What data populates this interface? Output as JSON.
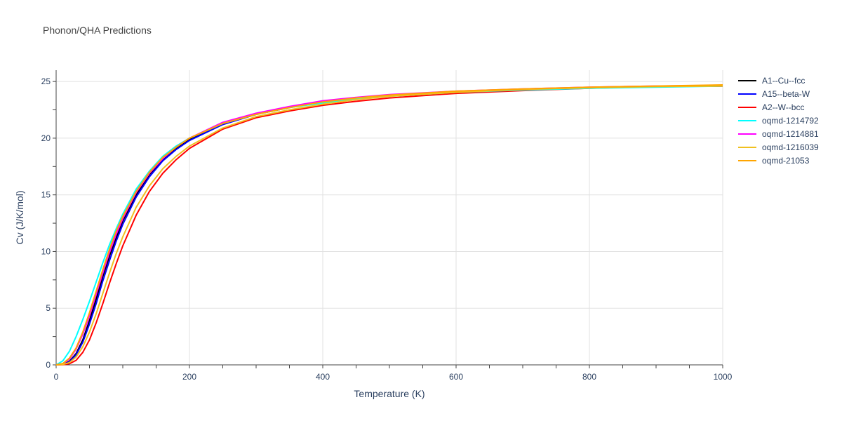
{
  "chart_data": {
    "type": "line",
    "title": "Phonon/QHA Predictions",
    "xlabel": "Temperature (K)",
    "ylabel": "Cv (J/K/mol)",
    "xlim": [
      0,
      1000
    ],
    "ylim": [
      0,
      26
    ],
    "x_ticks": [
      0,
      200,
      400,
      600,
      800,
      1000
    ],
    "y_ticks": [
      0,
      5,
      10,
      15,
      20,
      25
    ],
    "grid": true,
    "legend_position": "right",
    "series": [
      {
        "name": "A1--Cu--fcc",
        "color": "#000000",
        "points": [
          [
            0,
            0
          ],
          [
            10,
            0.05
          ],
          [
            20,
            0.3
          ],
          [
            30,
            1.0
          ],
          [
            40,
            2.2
          ],
          [
            50,
            3.9
          ],
          [
            60,
            5.8
          ],
          [
            70,
            7.8
          ],
          [
            80,
            9.6
          ],
          [
            90,
            11.2
          ],
          [
            100,
            12.7
          ],
          [
            120,
            15.0
          ],
          [
            140,
            16.8
          ],
          [
            160,
            18.1
          ],
          [
            180,
            19.1
          ],
          [
            200,
            19.9
          ],
          [
            250,
            21.3
          ],
          [
            300,
            22.1
          ],
          [
            350,
            22.7
          ],
          [
            400,
            23.2
          ],
          [
            450,
            23.55
          ],
          [
            500,
            23.8
          ],
          [
            600,
            24.1
          ],
          [
            700,
            24.3
          ],
          [
            800,
            24.45
          ],
          [
            900,
            24.55
          ],
          [
            1000,
            24.6
          ]
        ]
      },
      {
        "name": "A15--beta-W",
        "color": "#0000ff",
        "points": [
          [
            0,
            0
          ],
          [
            10,
            0.05
          ],
          [
            20,
            0.25
          ],
          [
            30,
            0.9
          ],
          [
            40,
            2.0
          ],
          [
            50,
            3.6
          ],
          [
            60,
            5.4
          ],
          [
            70,
            7.4
          ],
          [
            80,
            9.2
          ],
          [
            90,
            10.9
          ],
          [
            100,
            12.4
          ],
          [
            120,
            14.8
          ],
          [
            140,
            16.6
          ],
          [
            160,
            18.0
          ],
          [
            180,
            19.0
          ],
          [
            200,
            19.8
          ],
          [
            250,
            21.2
          ],
          [
            300,
            22.1
          ],
          [
            350,
            22.7
          ],
          [
            400,
            23.2
          ],
          [
            450,
            23.55
          ],
          [
            500,
            23.8
          ],
          [
            600,
            24.1
          ],
          [
            700,
            24.3
          ],
          [
            800,
            24.45
          ],
          [
            900,
            24.55
          ],
          [
            1000,
            24.6
          ]
        ]
      },
      {
        "name": "A2--W--bcc",
        "color": "#ff0000",
        "points": [
          [
            0,
            0
          ],
          [
            10,
            0.02
          ],
          [
            20,
            0.1
          ],
          [
            30,
            0.4
          ],
          [
            40,
            1.1
          ],
          [
            50,
            2.2
          ],
          [
            60,
            3.7
          ],
          [
            70,
            5.4
          ],
          [
            80,
            7.2
          ],
          [
            90,
            8.9
          ],
          [
            100,
            10.5
          ],
          [
            120,
            13.2
          ],
          [
            140,
            15.3
          ],
          [
            160,
            16.9
          ],
          [
            180,
            18.1
          ],
          [
            200,
            19.1
          ],
          [
            250,
            20.8
          ],
          [
            300,
            21.8
          ],
          [
            350,
            22.4
          ],
          [
            400,
            22.9
          ],
          [
            450,
            23.25
          ],
          [
            500,
            23.55
          ],
          [
            600,
            23.95
          ],
          [
            700,
            24.2
          ],
          [
            800,
            24.4
          ],
          [
            900,
            24.55
          ],
          [
            1000,
            24.6
          ]
        ]
      },
      {
        "name": "oqmd-1214792",
        "color": "#00ffff",
        "points": [
          [
            0,
            0
          ],
          [
            10,
            0.35
          ],
          [
            20,
            1.2
          ],
          [
            30,
            2.5
          ],
          [
            40,
            4.0
          ],
          [
            50,
            5.6
          ],
          [
            60,
            7.3
          ],
          [
            70,
            9.0
          ],
          [
            80,
            10.6
          ],
          [
            90,
            12.0
          ],
          [
            100,
            13.3
          ],
          [
            120,
            15.5
          ],
          [
            140,
            17.1
          ],
          [
            160,
            18.4
          ],
          [
            180,
            19.3
          ],
          [
            200,
            20.0
          ],
          [
            250,
            21.3
          ],
          [
            300,
            22.1
          ],
          [
            350,
            22.7
          ],
          [
            400,
            23.1
          ],
          [
            450,
            23.45
          ],
          [
            500,
            23.7
          ],
          [
            600,
            24.05
          ],
          [
            700,
            24.25
          ],
          [
            800,
            24.4
          ],
          [
            900,
            24.5
          ],
          [
            1000,
            24.6
          ]
        ]
      },
      {
        "name": "oqmd-1214881",
        "color": "#ff00ff",
        "points": [
          [
            0,
            0
          ],
          [
            10,
            0.1
          ],
          [
            20,
            0.5
          ],
          [
            30,
            1.4
          ],
          [
            40,
            2.7
          ],
          [
            50,
            4.3
          ],
          [
            60,
            6.2
          ],
          [
            70,
            8.1
          ],
          [
            80,
            9.9
          ],
          [
            90,
            11.5
          ],
          [
            100,
            12.9
          ],
          [
            120,
            15.2
          ],
          [
            140,
            16.9
          ],
          [
            160,
            18.2
          ],
          [
            180,
            19.2
          ],
          [
            200,
            20.0
          ],
          [
            250,
            21.4
          ],
          [
            300,
            22.2
          ],
          [
            350,
            22.8
          ],
          [
            400,
            23.3
          ],
          [
            450,
            23.6
          ],
          [
            500,
            23.85
          ],
          [
            600,
            24.15
          ],
          [
            700,
            24.35
          ],
          [
            800,
            24.5
          ],
          [
            900,
            24.6
          ],
          [
            1000,
            24.65
          ]
        ]
      },
      {
        "name": "oqmd-1216039",
        "color": "#f0c020",
        "points": [
          [
            0,
            0
          ],
          [
            10,
            0.04
          ],
          [
            20,
            0.2
          ],
          [
            30,
            0.7
          ],
          [
            40,
            1.6
          ],
          [
            50,
            2.9
          ],
          [
            60,
            4.5
          ],
          [
            70,
            6.3
          ],
          [
            80,
            8.1
          ],
          [
            90,
            9.8
          ],
          [
            100,
            11.3
          ],
          [
            120,
            13.9
          ],
          [
            140,
            15.8
          ],
          [
            160,
            17.3
          ],
          [
            180,
            18.4
          ],
          [
            200,
            19.3
          ],
          [
            250,
            20.9
          ],
          [
            300,
            21.9
          ],
          [
            350,
            22.5
          ],
          [
            400,
            23.0
          ],
          [
            450,
            23.4
          ],
          [
            500,
            23.7
          ],
          [
            600,
            24.05
          ],
          [
            700,
            24.3
          ],
          [
            800,
            24.45
          ],
          [
            900,
            24.55
          ],
          [
            1000,
            24.6
          ]
        ]
      },
      {
        "name": "oqmd-21053",
        "color": "#ffa500",
        "points": [
          [
            0,
            0
          ],
          [
            10,
            0.12
          ],
          [
            20,
            0.6
          ],
          [
            30,
            1.5
          ],
          [
            40,
            2.9
          ],
          [
            50,
            4.6
          ],
          [
            60,
            6.5
          ],
          [
            70,
            8.4
          ],
          [
            80,
            10.2
          ],
          [
            90,
            11.8
          ],
          [
            100,
            13.1
          ],
          [
            120,
            15.3
          ],
          [
            140,
            17.0
          ],
          [
            160,
            18.3
          ],
          [
            180,
            19.2
          ],
          [
            200,
            20.0
          ],
          [
            250,
            21.3
          ],
          [
            300,
            22.1
          ],
          [
            350,
            22.7
          ],
          [
            400,
            23.2
          ],
          [
            450,
            23.55
          ],
          [
            500,
            23.8
          ],
          [
            600,
            24.15
          ],
          [
            700,
            24.35
          ],
          [
            800,
            24.5
          ],
          [
            900,
            24.6
          ],
          [
            1000,
            24.7
          ]
        ]
      }
    ]
  }
}
